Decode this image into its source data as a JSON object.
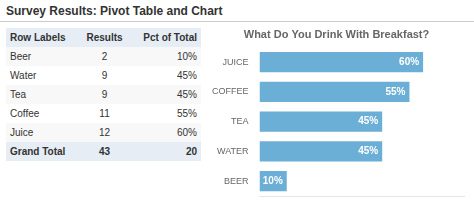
{
  "chart_data": [
    {
      "type": "table",
      "title": "Survey Results: Pivot Table and Chart",
      "headers": [
        "Row Labels",
        "Results",
        "Pct of Total"
      ],
      "rows": [
        [
          "Beer",
          "2",
          "10%"
        ],
        [
          "Water",
          "9",
          "45%"
        ],
        [
          "Tea",
          "9",
          "45%"
        ],
        [
          "Coffee",
          "11",
          "55%"
        ],
        [
          "Juice",
          "12",
          "60%"
        ]
      ],
      "footer": [
        "Grand Total",
        "43",
        "20"
      ]
    },
    {
      "type": "bar",
      "title": "What Do You Drink With Breakfast?",
      "orientation": "horizontal",
      "categories": [
        "JUICE",
        "COFFEE",
        "TEA",
        "WATER",
        "BEER"
      ],
      "values": [
        60,
        55,
        45,
        45,
        10
      ],
      "value_labels": [
        "60%",
        "55%",
        "45%",
        "45%",
        "10%"
      ],
      "data_labels": true,
      "color": "#6baed6",
      "xlim": [
        0,
        75
      ],
      "grid": false,
      "tick_labels": "y"
    }
  ]
}
